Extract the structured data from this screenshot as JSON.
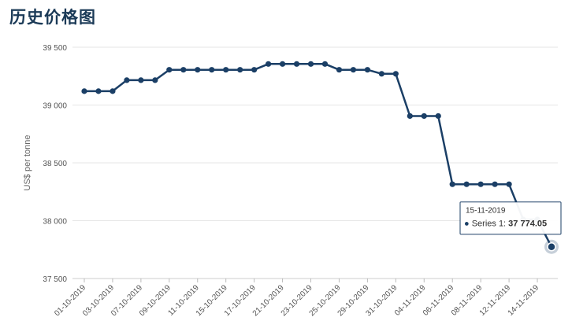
{
  "page": {
    "title": "历史价格图"
  },
  "chart_data": {
    "type": "line",
    "ylabel": "US$ per tonne",
    "ylim": [
      37500,
      39500
    ],
    "yticks": [
      37500,
      38000,
      38500,
      39000,
      39500
    ],
    "ytick_labels": [
      "37 500",
      "38 000",
      "38 500",
      "39 000",
      "39 500"
    ],
    "x_tick_labels": [
      "01-10-2019",
      "03-10-2019",
      "07-10-2019",
      "09-10-2019",
      "11-10-2019",
      "15-10-2019",
      "17-10-2019",
      "21-10-2019",
      "23-10-2019",
      "25-10-2019",
      "29-10-2019",
      "31-10-2019",
      "04-11-2019",
      "06-11-2019",
      "08-11-2019",
      "12-11-2019",
      "14-11-2019"
    ],
    "grid": "horizontal",
    "colors": {
      "line": "#1b3f66",
      "grid": "#e6e6e6",
      "title": "#1b3a57"
    },
    "series": [
      {
        "name": "Series 1",
        "values": [
          39120,
          39120,
          39120,
          39215,
          39215,
          39215,
          39305,
          39305,
          39305,
          39305,
          39305,
          39305,
          39305,
          39355,
          39355,
          39355,
          39355,
          39355,
          39305,
          39305,
          39305,
          39270,
          39270,
          38905,
          38905,
          38905,
          38315,
          38315,
          38315,
          38315,
          38315,
          38010,
          38010,
          37774.05
        ]
      }
    ],
    "tooltip": {
      "date": "15-11-2019",
      "series": "Series 1: ",
      "value": "37 774.05"
    }
  }
}
